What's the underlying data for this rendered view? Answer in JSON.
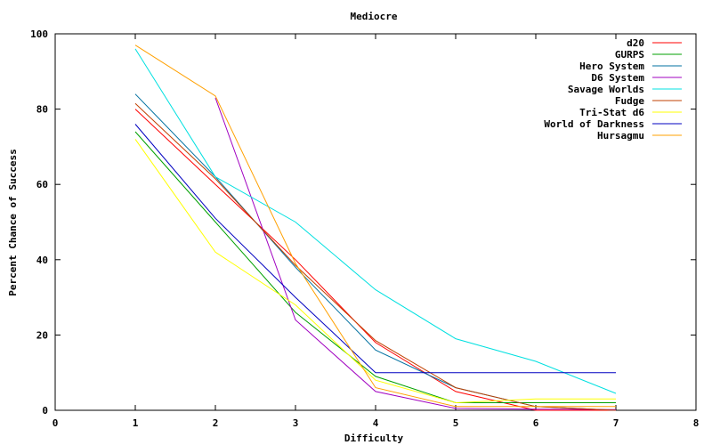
{
  "chart_data": {
    "type": "line",
    "title": "Mediocre",
    "xlabel": "Difficulty",
    "ylabel": "Percent Chance of Success",
    "xlim": [
      0,
      8
    ],
    "ylim": [
      0,
      100
    ],
    "x_ticks": [
      0,
      1,
      2,
      3,
      4,
      5,
      6,
      7,
      8
    ],
    "y_ticks": [
      0,
      20,
      40,
      60,
      80,
      100
    ],
    "grid": false,
    "legend_position": "top-right",
    "series": [
      {
        "name": "d20",
        "color": "#ff0000",
        "x": [
          1,
          2,
          3,
          4,
          5,
          6,
          7
        ],
        "y": [
          80,
          60,
          40,
          18,
          5,
          0,
          0
        ]
      },
      {
        "name": "GURPS",
        "color": "#00a000",
        "x": [
          1,
          2,
          3,
          4,
          5,
          6,
          7
        ],
        "y": [
          74,
          50,
          26,
          9,
          2,
          2,
          2
        ]
      },
      {
        "name": "Hero System",
        "color": "#0070a0",
        "x": [
          1,
          2,
          3,
          4,
          5,
          6,
          7
        ],
        "y": [
          84,
          62,
          38,
          16,
          6,
          1,
          0
        ]
      },
      {
        "name": "D6 System",
        "color": "#a000c0",
        "x": [
          2,
          3,
          4,
          5,
          6,
          7
        ],
        "y": [
          83,
          24,
          5,
          0.5,
          0.3,
          0.2
        ]
      },
      {
        "name": "Savage Worlds",
        "color": "#00e0e0",
        "x": [
          1,
          2,
          3,
          4,
          5,
          6,
          7
        ],
        "y": [
          96,
          62,
          50,
          32,
          19,
          13,
          4.5
        ]
      },
      {
        "name": "Fudge",
        "color": "#c04000",
        "x": [
          1,
          2,
          3,
          4,
          5,
          6,
          7
        ],
        "y": [
          81.5,
          61.5,
          38.5,
          18.5,
          6,
          1,
          0
        ]
      },
      {
        "name": "Tri-Stat d6",
        "color": "#ffff00",
        "x": [
          1,
          2,
          3,
          4,
          5,
          6,
          7
        ],
        "y": [
          72,
          42,
          28,
          8,
          2,
          3,
          3
        ]
      },
      {
        "name": "World of Darkness",
        "color": "#0000c0",
        "x": [
          1,
          2,
          3,
          4,
          5,
          6,
          7
        ],
        "y": [
          76,
          51,
          30,
          10,
          10,
          10,
          10
        ]
      },
      {
        "name": "Hursagmu",
        "color": "#ffa000",
        "x": [
          1,
          2,
          3,
          4,
          5,
          6,
          7
        ],
        "y": [
          97,
          83.5,
          39,
          6,
          1,
          1,
          1
        ]
      }
    ]
  }
}
